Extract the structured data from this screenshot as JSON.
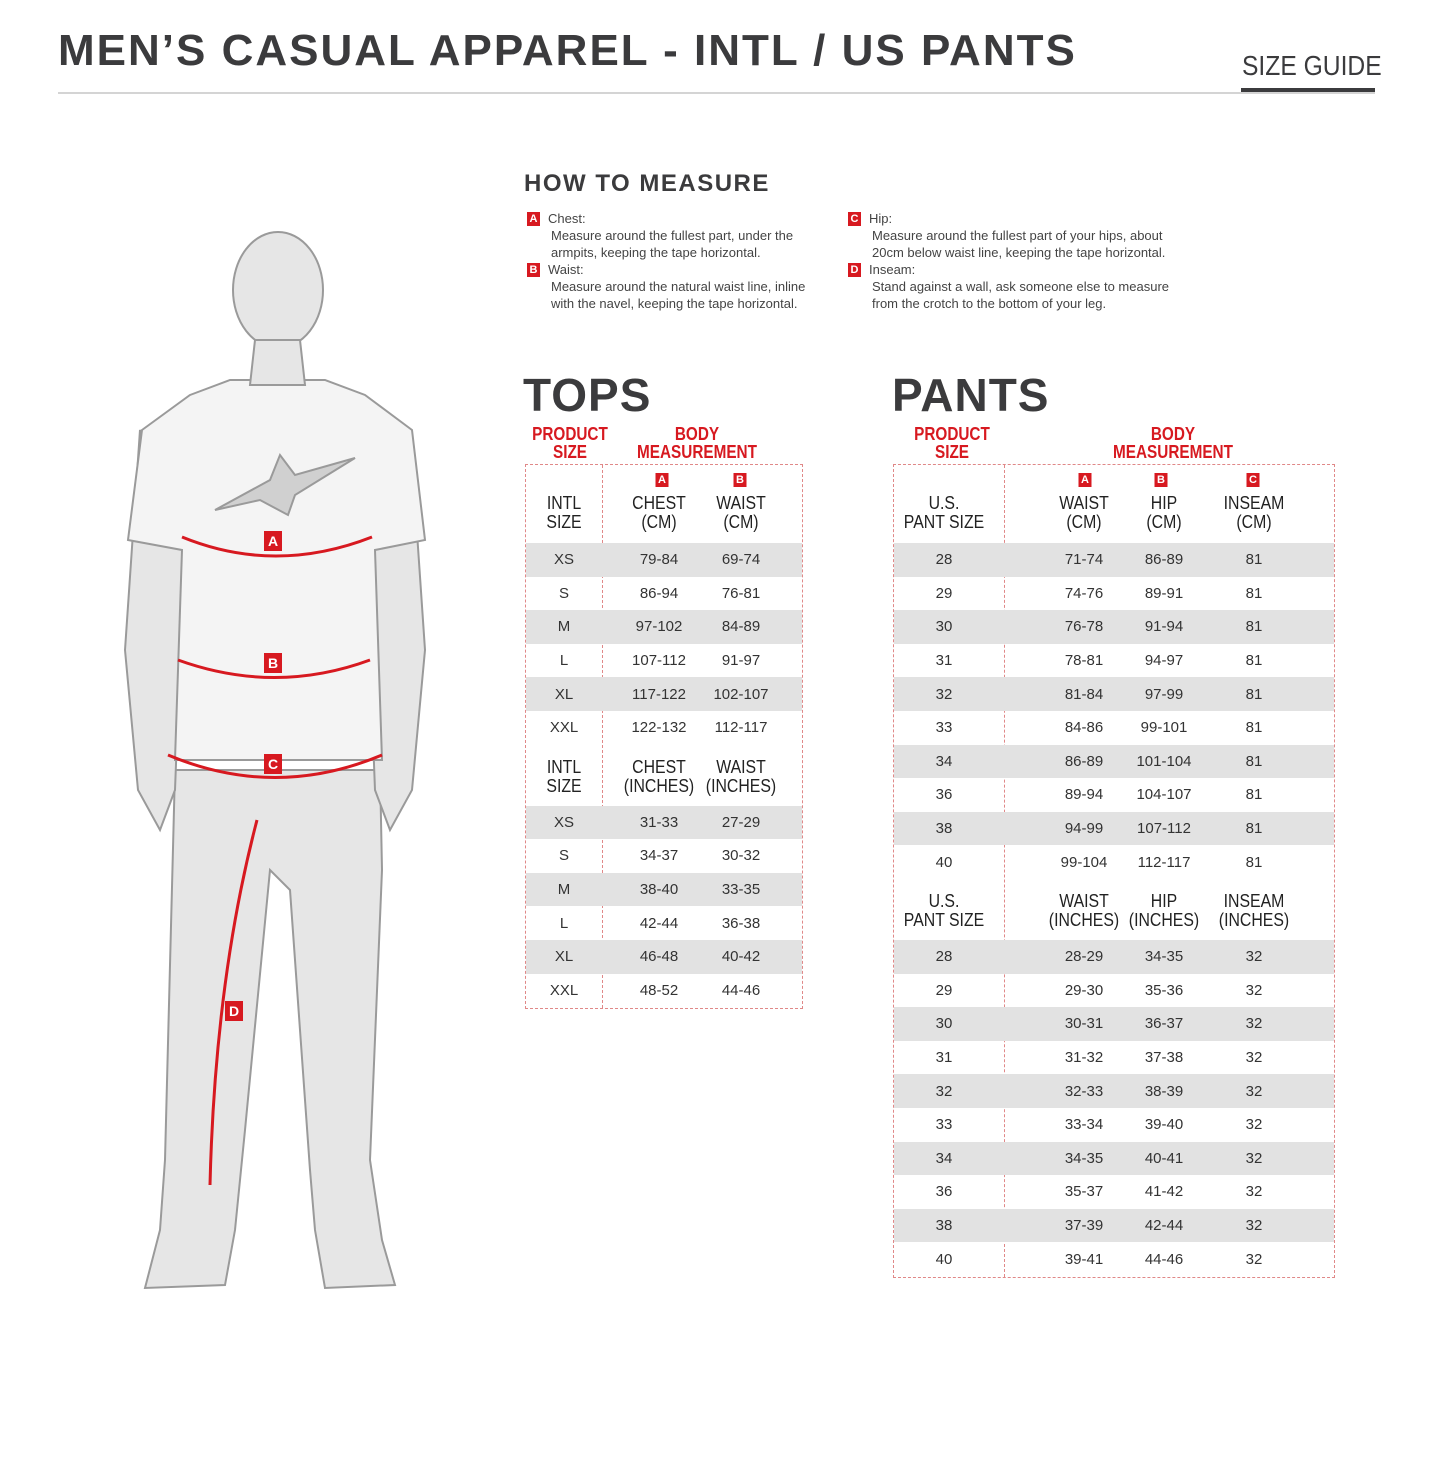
{
  "header": {
    "title": "MEN’S CASUAL APPAREL - INTL / US PANTS",
    "size_guide": "SIZE GUIDE"
  },
  "how_to_measure": {
    "title": "HOW TO MEASURE",
    "items": [
      {
        "badge": "A",
        "label": "Chest:",
        "text": "Measure around the fullest part, under the armpits, keeping the tape horizontal."
      },
      {
        "badge": "B",
        "label": "Waist:",
        "text": "Measure around the natural waist line, inline with the navel, keeping the tape horizontal."
      },
      {
        "badge": "C",
        "label": "Hip:",
        "text": "Measure around the fullest part of your hips, about 20cm below waist line, keeping the tape horizontal."
      },
      {
        "badge": "D",
        "label": "Inseam:",
        "text": "Stand against a wall, ask someone else to measure from the crotch to the bottom of your leg."
      }
    ]
  },
  "figure": {
    "markers": [
      "A",
      "B",
      "C",
      "D"
    ]
  },
  "tops": {
    "title": "TOPS",
    "product_size": "PRODUCT\nSIZE",
    "body_measurement": "BODY\nMEASUREMENT",
    "badges": [
      "A",
      "B"
    ],
    "cm_headers": [
      "INTL\nSIZE",
      "CHEST\n(CM)",
      "WAIST\n(CM)"
    ],
    "cm_rows": [
      [
        "XS",
        "79-84",
        "69-74"
      ],
      [
        "S",
        "86-94",
        "76-81"
      ],
      [
        "M",
        "97-102",
        "84-89"
      ],
      [
        "L",
        "107-112",
        "91-97"
      ],
      [
        "XL",
        "117-122",
        "102-107"
      ],
      [
        "XXL",
        "122-132",
        "112-117"
      ]
    ],
    "in_headers": [
      "INTL\nSIZE",
      "CHEST\n(INCHES)",
      "WAIST\n(INCHES)"
    ],
    "in_rows": [
      [
        "XS",
        "31-33",
        "27-29"
      ],
      [
        "S",
        "34-37",
        "30-32"
      ],
      [
        "M",
        "38-40",
        "33-35"
      ],
      [
        "L",
        "42-44",
        "36-38"
      ],
      [
        "XL",
        "46-48",
        "40-42"
      ],
      [
        "XXL",
        "48-52",
        "44-46"
      ]
    ]
  },
  "pants": {
    "title": "PANTS",
    "product_size": "PRODUCT\nSIZE",
    "body_measurement": "BODY\nMEASUREMENT",
    "badges": [
      "A",
      "B",
      "C"
    ],
    "cm_headers": [
      "U.S.\nPANT SIZE",
      "WAIST\n(CM)",
      "HIP\n(CM)",
      "INSEAM\n(CM)"
    ],
    "cm_rows": [
      [
        "28",
        "71-74",
        "86-89",
        "81"
      ],
      [
        "29",
        "74-76",
        "89-91",
        "81"
      ],
      [
        "30",
        "76-78",
        "91-94",
        "81"
      ],
      [
        "31",
        "78-81",
        "94-97",
        "81"
      ],
      [
        "32",
        "81-84",
        "97-99",
        "81"
      ],
      [
        "33",
        "84-86",
        "99-101",
        "81"
      ],
      [
        "34",
        "86-89",
        "101-104",
        "81"
      ],
      [
        "36",
        "89-94",
        "104-107",
        "81"
      ],
      [
        "38",
        "94-99",
        "107-112",
        "81"
      ],
      [
        "40",
        "99-104",
        "112-117",
        "81"
      ]
    ],
    "in_headers": [
      "U.S.\nPANT SIZE",
      "WAIST\n(INCHES)",
      "HIP\n(INCHES)",
      "INSEAM\n(INCHES)"
    ],
    "in_rows": [
      [
        "28",
        "28-29",
        "34-35",
        "32"
      ],
      [
        "29",
        "29-30",
        "35-36",
        "32"
      ],
      [
        "30",
        "30-31",
        "36-37",
        "32"
      ],
      [
        "31",
        "31-32",
        "37-38",
        "32"
      ],
      [
        "32",
        "32-33",
        "38-39",
        "32"
      ],
      [
        "33",
        "33-34",
        "39-40",
        "32"
      ],
      [
        "34",
        "34-35",
        "40-41",
        "32"
      ],
      [
        "36",
        "35-37",
        "41-42",
        "32"
      ],
      [
        "38",
        "37-39",
        "42-44",
        "32"
      ],
      [
        "40",
        "39-41",
        "44-46",
        "32"
      ]
    ]
  },
  "colors": {
    "accent": "#d71920",
    "shade": "#e2e2e2",
    "text": "#3b3b3d"
  }
}
